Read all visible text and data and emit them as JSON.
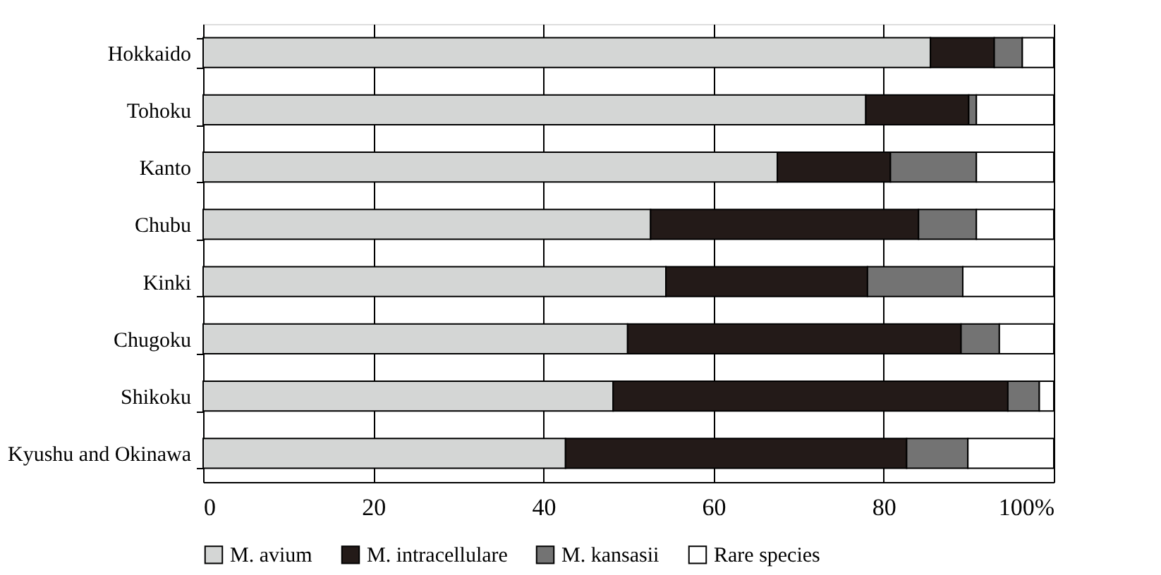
{
  "chart_data": {
    "type": "bar",
    "orientation": "horizontal",
    "stacked": true,
    "categories": [
      "Hokkaido",
      "Tohoku",
      "Kanto",
      "Chubu",
      "Kinki",
      "Chugoku",
      "Shikoku",
      "Kyushu and Okinawa"
    ],
    "series": [
      {
        "name": "M. avium",
        "color": "#d4d6d5",
        "values": [
          85.5,
          77.9,
          67.5,
          52.6,
          54.4,
          49.9,
          48.2,
          42.6
        ]
      },
      {
        "name": "M. intracellulare",
        "color": "#231a18",
        "values": [
          7.5,
          12.1,
          13.3,
          31.5,
          23.7,
          39.2,
          46.4,
          40.1
        ]
      },
      {
        "name": "M. kansasii",
        "color": "#737373",
        "values": [
          3.3,
          0.9,
          10.1,
          6.8,
          11.2,
          4.5,
          3.7,
          7.2
        ]
      },
      {
        "name": "Rare species",
        "color": "#ffffff",
        "values": [
          3.7,
          9.1,
          9.1,
          9.1,
          10.7,
          6.4,
          1.7,
          10.1
        ]
      }
    ],
    "xlim": [
      0,
      100
    ],
    "xticks": [
      0,
      20,
      40,
      60,
      80,
      {
        "value": 100,
        "label": "100%"
      }
    ],
    "grid": "x",
    "legend": "bottom"
  }
}
